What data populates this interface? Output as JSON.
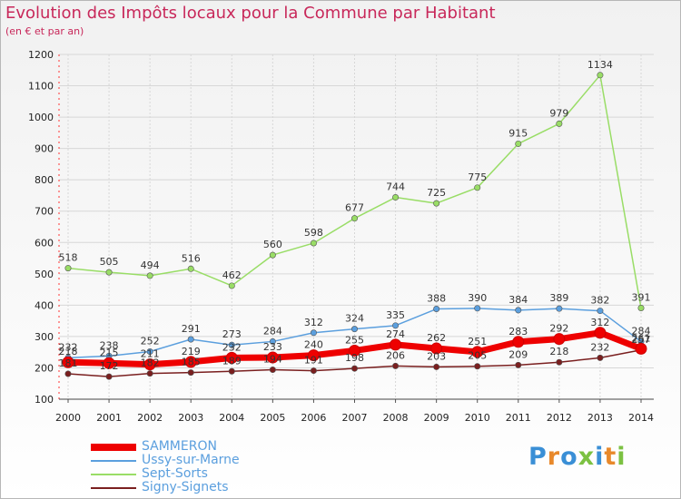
{
  "header": {
    "title": "Evolution des Impôts locaux pour la Commune par Habitant",
    "subtitle": "(en € et par an)"
  },
  "brand": {
    "logo_text": "Proxiti"
  },
  "colors": {
    "title": "#c8285a",
    "axis_labels": "#222222",
    "legend_text": "#5b9fde",
    "grid": "#d7d7d7",
    "label_text": "#333333"
  },
  "chart_data": {
    "type": "line",
    "x": [
      "2000",
      "2001",
      "2002",
      "2003",
      "2004",
      "2005",
      "2006",
      "2007",
      "2008",
      "2009",
      "2010",
      "2011",
      "2012",
      "2013",
      "2014"
    ],
    "ylim": [
      100,
      1200
    ],
    "yticks": [
      100,
      200,
      300,
      400,
      500,
      600,
      700,
      800,
      900,
      1000,
      1100,
      1200
    ],
    "grid": true,
    "legend_position": "bottom-left",
    "series": [
      {
        "name": "SAMMERON",
        "color": "#ee0000",
        "values": [
          218,
          215,
          211,
          219,
          232,
          233,
          240,
          255,
          274,
          262,
          251,
          283,
          292,
          312,
          261
        ],
        "label_values": [
          218,
          215,
          211,
          219,
          232,
          233,
          240,
          255,
          274,
          262,
          251,
          283,
          292,
          312,
          261
        ],
        "thick": true
      },
      {
        "name": "Ussy-sur-Marne",
        "color": "#5b9fde",
        "values": [
          232,
          238,
          252,
          291,
          273,
          284,
          312,
          324,
          335,
          388,
          390,
          384,
          389,
          382,
          284
        ],
        "label_values": [
          232,
          238,
          252,
          291,
          273,
          284,
          312,
          324,
          335,
          388,
          390,
          384,
          389,
          382,
          284
        ],
        "thick": false
      },
      {
        "name": "Sept-Sorts",
        "color": "#99dd66",
        "values": [
          518,
          505,
          494,
          516,
          462,
          560,
          598,
          677,
          744,
          725,
          775,
          915,
          979,
          1134,
          391
        ],
        "label_values": [
          518,
          505,
          494,
          516,
          462,
          560,
          598,
          677,
          744,
          725,
          775,
          915,
          979,
          1134,
          391
        ],
        "thick": false
      },
      {
        "name": "Signy-Signets",
        "color": "#7a1f1f",
        "values": [
          181,
          172,
          182,
          185,
          189,
          194,
          191,
          198,
          206,
          203,
          205,
          209,
          218,
          232,
          257
        ],
        "label_values": [
          181,
          172,
          182,
          185,
          189,
          194,
          191,
          198,
          206,
          203,
          205,
          209,
          218,
          232,
          257
        ],
        "thick": false
      }
    ]
  }
}
